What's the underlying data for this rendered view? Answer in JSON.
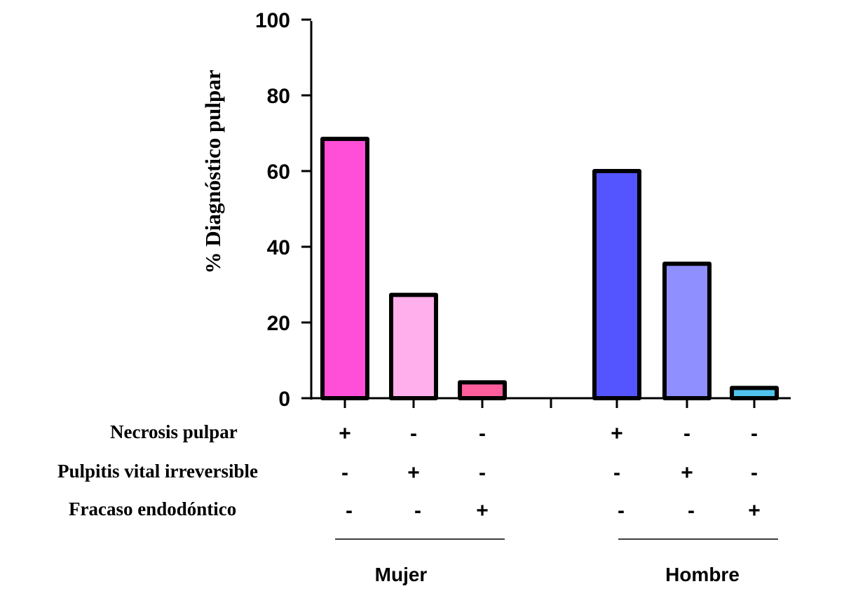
{
  "chart_data": {
    "type": "bar",
    "ylabel": "% Diagnóstico pulpar",
    "ylim": [
      0,
      100
    ],
    "yticks": [
      "0",
      "20",
      "40",
      "60",
      "80",
      "100"
    ],
    "grid": false,
    "groups": [
      {
        "name": "Mujer",
        "bars": [
          {
            "value": 68.5,
            "color": "#ff4fd8",
            "signs": [
              "+",
              "-",
              "-"
            ]
          },
          {
            "value": 27.3,
            "color": "#ffb0ec",
            "signs": [
              "-",
              "+",
              "-"
            ]
          },
          {
            "value": 4.2,
            "color": "#ff5e9c",
            "signs": [
              "-",
              "-",
              "+"
            ]
          }
        ]
      },
      {
        "name": "Hombre",
        "bars": [
          {
            "value": 60.0,
            "color": "#5555ff",
            "signs": [
              "+",
              "-",
              "-"
            ]
          },
          {
            "value": 35.5,
            "color": "#8f8fff",
            "signs": [
              "-",
              "+",
              "-"
            ]
          },
          {
            "value": 2.7,
            "color": "#4fc3ec",
            "signs": [
              "-",
              "-",
              "+"
            ]
          }
        ]
      }
    ],
    "row_labels": [
      "Necrosis pulpar",
      "Pulpitis vital irreversible",
      "Fracaso endodóntico"
    ]
  }
}
